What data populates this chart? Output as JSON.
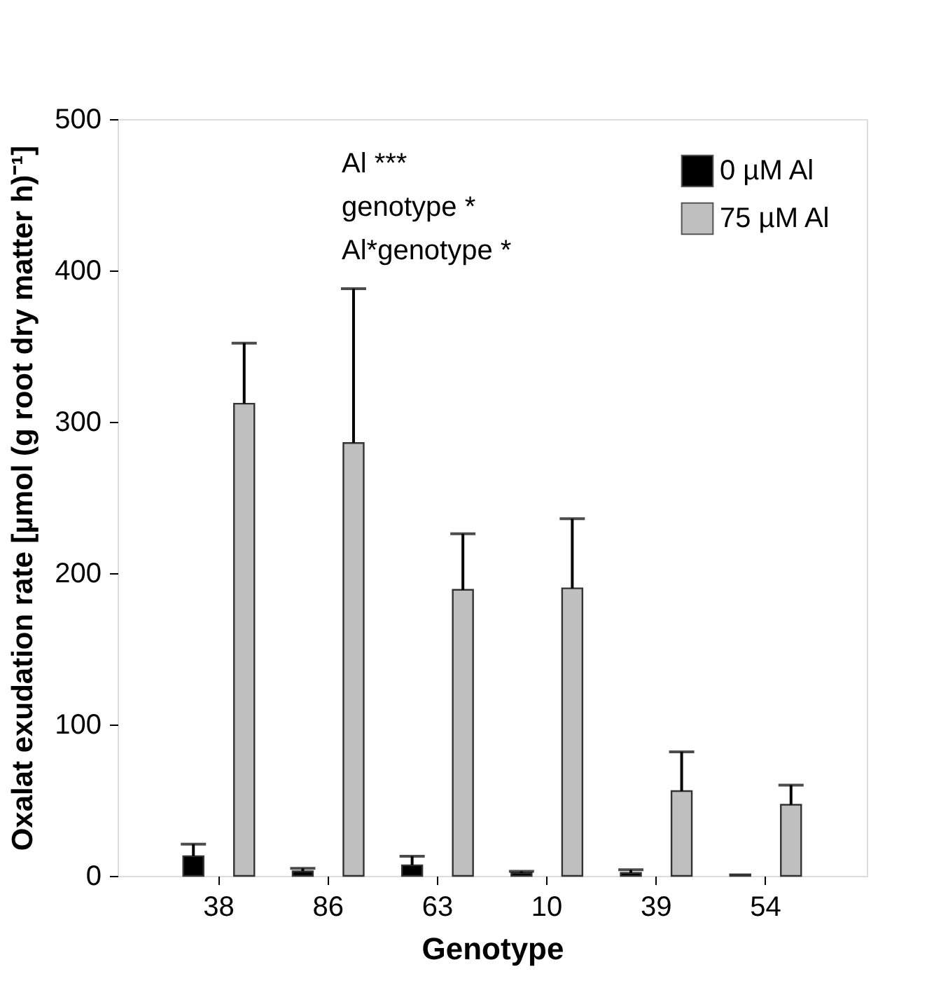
{
  "chart_data": {
    "type": "bar",
    "xlabel": "Genotype",
    "ylabel": "Oxalat exudation rate [µmol (g root dry matter h)⁻¹]",
    "categories": [
      "38",
      "86",
      "63",
      "10",
      "39",
      "54"
    ],
    "series": [
      {
        "name": "0 µM Al",
        "color": "#000000",
        "values": [
          13,
          3,
          7,
          2,
          2,
          1
        ],
        "errors": [
          [
            13,
            21
          ],
          [
            3,
            5
          ],
          [
            7,
            13
          ],
          [
            2,
            3
          ],
          [
            2,
            4
          ],
          null
        ]
      },
      {
        "name": "75 µM Al",
        "color": "#bfbfbf",
        "values": [
          312,
          286,
          189,
          190,
          56,
          47
        ],
        "errors": [
          [
            312,
            352
          ],
          [
            286,
            388
          ],
          [
            189,
            226
          ],
          [
            190,
            236
          ],
          [
            56,
            82
          ],
          [
            47,
            60
          ]
        ]
      }
    ],
    "ylim": [
      0,
      500
    ],
    "yticks": [
      0,
      100,
      200,
      300,
      400,
      500
    ],
    "grid": false,
    "legend": "top right",
    "annotations": [
      "Al ***",
      "genotype *",
      "Al*genotype *"
    ]
  }
}
